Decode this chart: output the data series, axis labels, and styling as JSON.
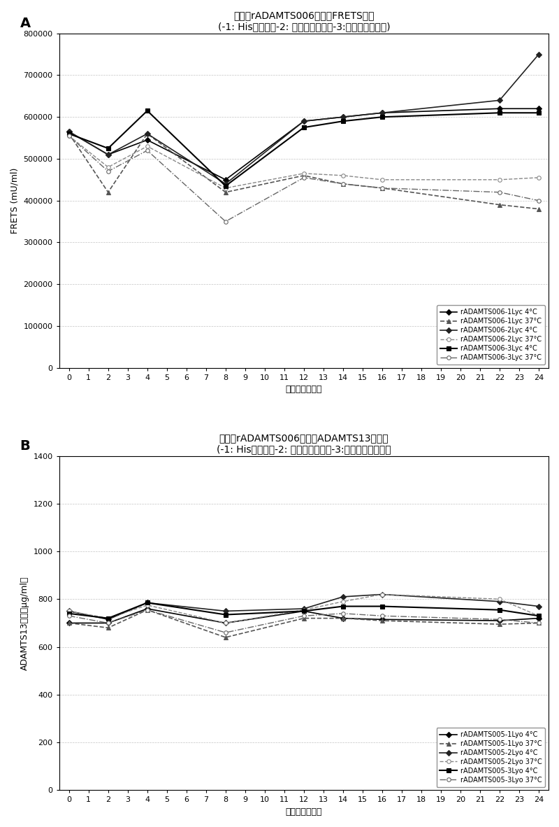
{
  "panel_A": {
    "title_line1": "冻干的rADAMTS006制剂的FRETS活性",
    "title_line2": "(-1: His缓冲液；-2: 磷酸盐缓冲液；-3:柠檬酸盐缓冲液)",
    "xlabel": "储存时间［周］",
    "ylabel": "FRETS (mU/ml)",
    "ylim": [
      0,
      800000
    ],
    "yticks": [
      0,
      100000,
      200000,
      300000,
      400000,
      500000,
      600000,
      700000,
      800000
    ],
    "xticks": [
      0,
      1,
      2,
      3,
      4,
      5,
      6,
      7,
      8,
      9,
      10,
      11,
      12,
      13,
      14,
      15,
      16,
      17,
      18,
      19,
      20,
      21,
      22,
      23,
      24
    ],
    "series": [
      {
        "label": "rADAMTS006-1Lyc 4°C",
        "x": [
          0,
          2,
          4,
          8,
          12,
          14,
          16,
          22,
          24
        ],
        "y": [
          565000,
          510000,
          545000,
          450000,
          590000,
          600000,
          610000,
          620000,
          620000
        ],
        "color": "#000000",
        "linestyle": "-",
        "marker": "D",
        "markersize": 4,
        "linewidth": 1.2,
        "markerfacecolor": "#000000"
      },
      {
        "label": "rADAMTS006-1Lyc 37°C",
        "x": [
          0,
          2,
          4,
          8,
          12,
          14,
          16,
          22,
          24
        ],
        "y": [
          560000,
          420000,
          560000,
          420000,
          460000,
          440000,
          430000,
          390000,
          380000
        ],
        "color": "#555555",
        "linestyle": "--",
        "marker": "^",
        "markersize": 4,
        "linewidth": 1.2,
        "markerfacecolor": "#555555"
      },
      {
        "label": "rADAMTS006-2Lyc 4°C",
        "x": [
          0,
          2,
          4,
          8,
          12,
          14,
          16,
          22,
          24
        ],
        "y": [
          565000,
          510000,
          560000,
          440000,
          590000,
          600000,
          610000,
          640000,
          750000
        ],
        "color": "#222222",
        "linestyle": "-",
        "marker": "D",
        "markersize": 4,
        "linewidth": 1.2,
        "markerfacecolor": "#222222"
      },
      {
        "label": "rADAMTS006-2Lyc 37°C",
        "x": [
          0,
          2,
          4,
          8,
          12,
          14,
          16,
          22,
          24
        ],
        "y": [
          555000,
          480000,
          530000,
          430000,
          465000,
          460000,
          450000,
          450000,
          455000
        ],
        "color": "#888888",
        "linestyle": "--",
        "marker": "o",
        "markersize": 4,
        "linewidth": 1.0,
        "markerfacecolor": "white"
      },
      {
        "label": "rADAMTS006-3Lyc 4°C",
        "x": [
          0,
          2,
          4,
          8,
          12,
          14,
          16,
          22,
          24
        ],
        "y": [
          560000,
          525000,
          615000,
          435000,
          575000,
          590000,
          600000,
          610000,
          610000
        ],
        "color": "#000000",
        "linestyle": "-",
        "marker": "s",
        "markersize": 5,
        "linewidth": 1.5,
        "markerfacecolor": "#000000"
      },
      {
        "label": "rADAMTS006-3Lyc 37°C",
        "x": [
          0,
          2,
          4,
          8,
          12,
          14,
          16,
          22,
          24
        ],
        "y": [
          555000,
          470000,
          520000,
          350000,
          455000,
          440000,
          430000,
          420000,
          400000
        ],
        "color": "#666666",
        "linestyle": "-.",
        "marker": "o",
        "markersize": 4,
        "linewidth": 1.0,
        "markerfacecolor": "white"
      }
    ]
  },
  "panel_B": {
    "title_line1": "冻干的rADAMTS006制剂的ADAMTS13抗原值",
    "title_line2": "(-1: His缓冲液；-2: 磷酸盐缓冲液；-3:柠檬酸盐缓冲液）",
    "xlabel": "储存时间［周］",
    "ylabel": "ADAMTS13抗原（μg/ml）",
    "ylim": [
      0,
      1400
    ],
    "yticks": [
      0,
      200,
      400,
      600,
      800,
      1000,
      1200,
      1400
    ],
    "xticks": [
      0,
      1,
      2,
      3,
      4,
      5,
      6,
      7,
      8,
      9,
      10,
      11,
      12,
      13,
      14,
      15,
      16,
      17,
      18,
      19,
      20,
      21,
      22,
      23,
      24
    ],
    "series": [
      {
        "label": "rADAMTS005-1Lyo 4°C",
        "x": [
          0,
          2,
          4,
          8,
          12,
          14,
          16,
          22,
          24
        ],
        "y": [
          700,
          700,
          760,
          700,
          750,
          720,
          715,
          710,
          720
        ],
        "color": "#000000",
        "linestyle": "-",
        "marker": "D",
        "markersize": 4,
        "linewidth": 1.2,
        "markerfacecolor": "#000000"
      },
      {
        "label": "rADAMTS005-1Lyo 37°C",
        "x": [
          0,
          2,
          4,
          8,
          12,
          14,
          16,
          22,
          24
        ],
        "y": [
          700,
          680,
          755,
          640,
          720,
          720,
          710,
          695,
          700
        ],
        "color": "#555555",
        "linestyle": "--",
        "marker": "^",
        "markersize": 4,
        "linewidth": 1.2,
        "markerfacecolor": "#555555"
      },
      {
        "label": "rADAMTS005-2Lyo 4°C",
        "x": [
          0,
          2,
          4,
          8,
          12,
          14,
          16,
          22,
          24
        ],
        "y": [
          750,
          715,
          785,
          750,
          760,
          810,
          820,
          790,
          770
        ],
        "color": "#222222",
        "linestyle": "-",
        "marker": "D",
        "markersize": 4,
        "linewidth": 1.2,
        "markerfacecolor": "#222222"
      },
      {
        "label": "rADAMTS005-2Lyo 37°C",
        "x": [
          0,
          2,
          4,
          8,
          12,
          14,
          16,
          22,
          24
        ],
        "y": [
          750,
          720,
          775,
          700,
          755,
          790,
          820,
          800,
          730
        ],
        "color": "#888888",
        "linestyle": "--",
        "marker": "o",
        "markersize": 4,
        "linewidth": 1.0,
        "markerfacecolor": "white"
      },
      {
        "label": "rADAMTS005-3Lyo 4°C",
        "x": [
          0,
          2,
          4,
          8,
          12,
          14,
          16,
          22,
          24
        ],
        "y": [
          740,
          720,
          785,
          735,
          750,
          770,
          770,
          755,
          730
        ],
        "color": "#000000",
        "linestyle": "-",
        "marker": "s",
        "markersize": 5,
        "linewidth": 1.5,
        "markerfacecolor": "#000000"
      },
      {
        "label": "rADAMTS005-3Lyo 37°C",
        "x": [
          0,
          2,
          4,
          8,
          12,
          14,
          16,
          22,
          24
        ],
        "y": [
          730,
          700,
          755,
          660,
          730,
          740,
          730,
          715,
          700
        ],
        "color": "#666666",
        "linestyle": "-.",
        "marker": "o",
        "markersize": 4,
        "linewidth": 1.0,
        "markerfacecolor": "white"
      }
    ]
  },
  "bg_color": "#ffffff",
  "grid_color": "#aaaaaa",
  "panel_label_fontsize": 14,
  "title_fontsize": 10,
  "axis_label_fontsize": 9,
  "tick_fontsize": 8,
  "legend_fontsize": 7
}
